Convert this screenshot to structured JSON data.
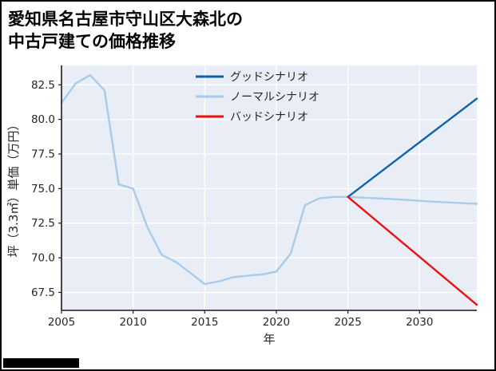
{
  "page": {
    "title_line1": "愛知県名古屋市守山区大森北の",
    "title_line2": "中古戸建ての価格推移"
  },
  "chart_data": {
    "type": "line",
    "title": "愛知県名古屋市守山区大森北の中古戸建ての価格推移",
    "xlabel": "年",
    "ylabel": "坪（3.3㎡）単価（万円）",
    "xlim": [
      2005,
      2034
    ],
    "ylim": [
      66.2,
      83.9
    ],
    "grid": true,
    "legend_position": "upper center",
    "x_ticks": [
      {
        "value": 2005,
        "label": "2005"
      },
      {
        "value": 2010,
        "label": "2010"
      },
      {
        "value": 2015,
        "label": "2015"
      },
      {
        "value": 2020,
        "label": "2020"
      },
      {
        "value": 2025,
        "label": "2025"
      },
      {
        "value": 2030,
        "label": "2030"
      }
    ],
    "y_ticks": [
      {
        "value": 67.5,
        "label": "67.5"
      },
      {
        "value": 70.0,
        "label": "70.0"
      },
      {
        "value": 72.5,
        "label": "72.5"
      },
      {
        "value": 75.0,
        "label": "75.0"
      },
      {
        "value": 77.5,
        "label": "77.5"
      },
      {
        "value": 80.0,
        "label": "80.0"
      },
      {
        "value": 82.5,
        "label": "82.5"
      }
    ],
    "colors": {
      "plot_bg": "#e9eef6",
      "grid": "#ffffff",
      "spine": "#1a1a1a",
      "tick_text": "#262626",
      "legend_text": "#555555",
      "good": "#0d63ab",
      "normal": "#a8cbe9",
      "bad": "#ee1111"
    },
    "legend": [
      {
        "label": "グッドシナリオ",
        "color": "#0d63ab"
      },
      {
        "label": "ノーマルシナリオ",
        "color": "#a8cbe9"
      },
      {
        "label": "バッドシナリオ",
        "color": "#ee1111"
      }
    ],
    "series": [
      {
        "name": "historical",
        "color": "#a8cbe9",
        "x": [
          2005,
          2006,
          2007,
          2008,
          2009,
          2010,
          2011,
          2012,
          2013,
          2014,
          2015,
          2016,
          2017,
          2018,
          2019,
          2020,
          2021,
          2022,
          2023,
          2024,
          2025
        ],
        "values": [
          81.2,
          82.6,
          83.2,
          82.1,
          75.3,
          75.0,
          72.2,
          70.2,
          69.7,
          68.9,
          68.1,
          68.3,
          68.6,
          68.7,
          68.8,
          69.0,
          70.3,
          73.8,
          74.3,
          74.4,
          74.4
        ]
      },
      {
        "name": "ノーマルシナリオ",
        "color": "#a8cbe9",
        "x": [
          2025,
          2028,
          2031,
          2034
        ],
        "values": [
          74.4,
          74.25,
          74.05,
          73.9
        ]
      },
      {
        "name": "グッドシナリオ",
        "color": "#0d63ab",
        "x": [
          2025,
          2034
        ],
        "values": [
          74.4,
          81.5
        ]
      },
      {
        "name": "バッドシナリオ",
        "color": "#ee1111",
        "x": [
          2025,
          2034
        ],
        "values": [
          74.4,
          66.6
        ]
      }
    ]
  }
}
